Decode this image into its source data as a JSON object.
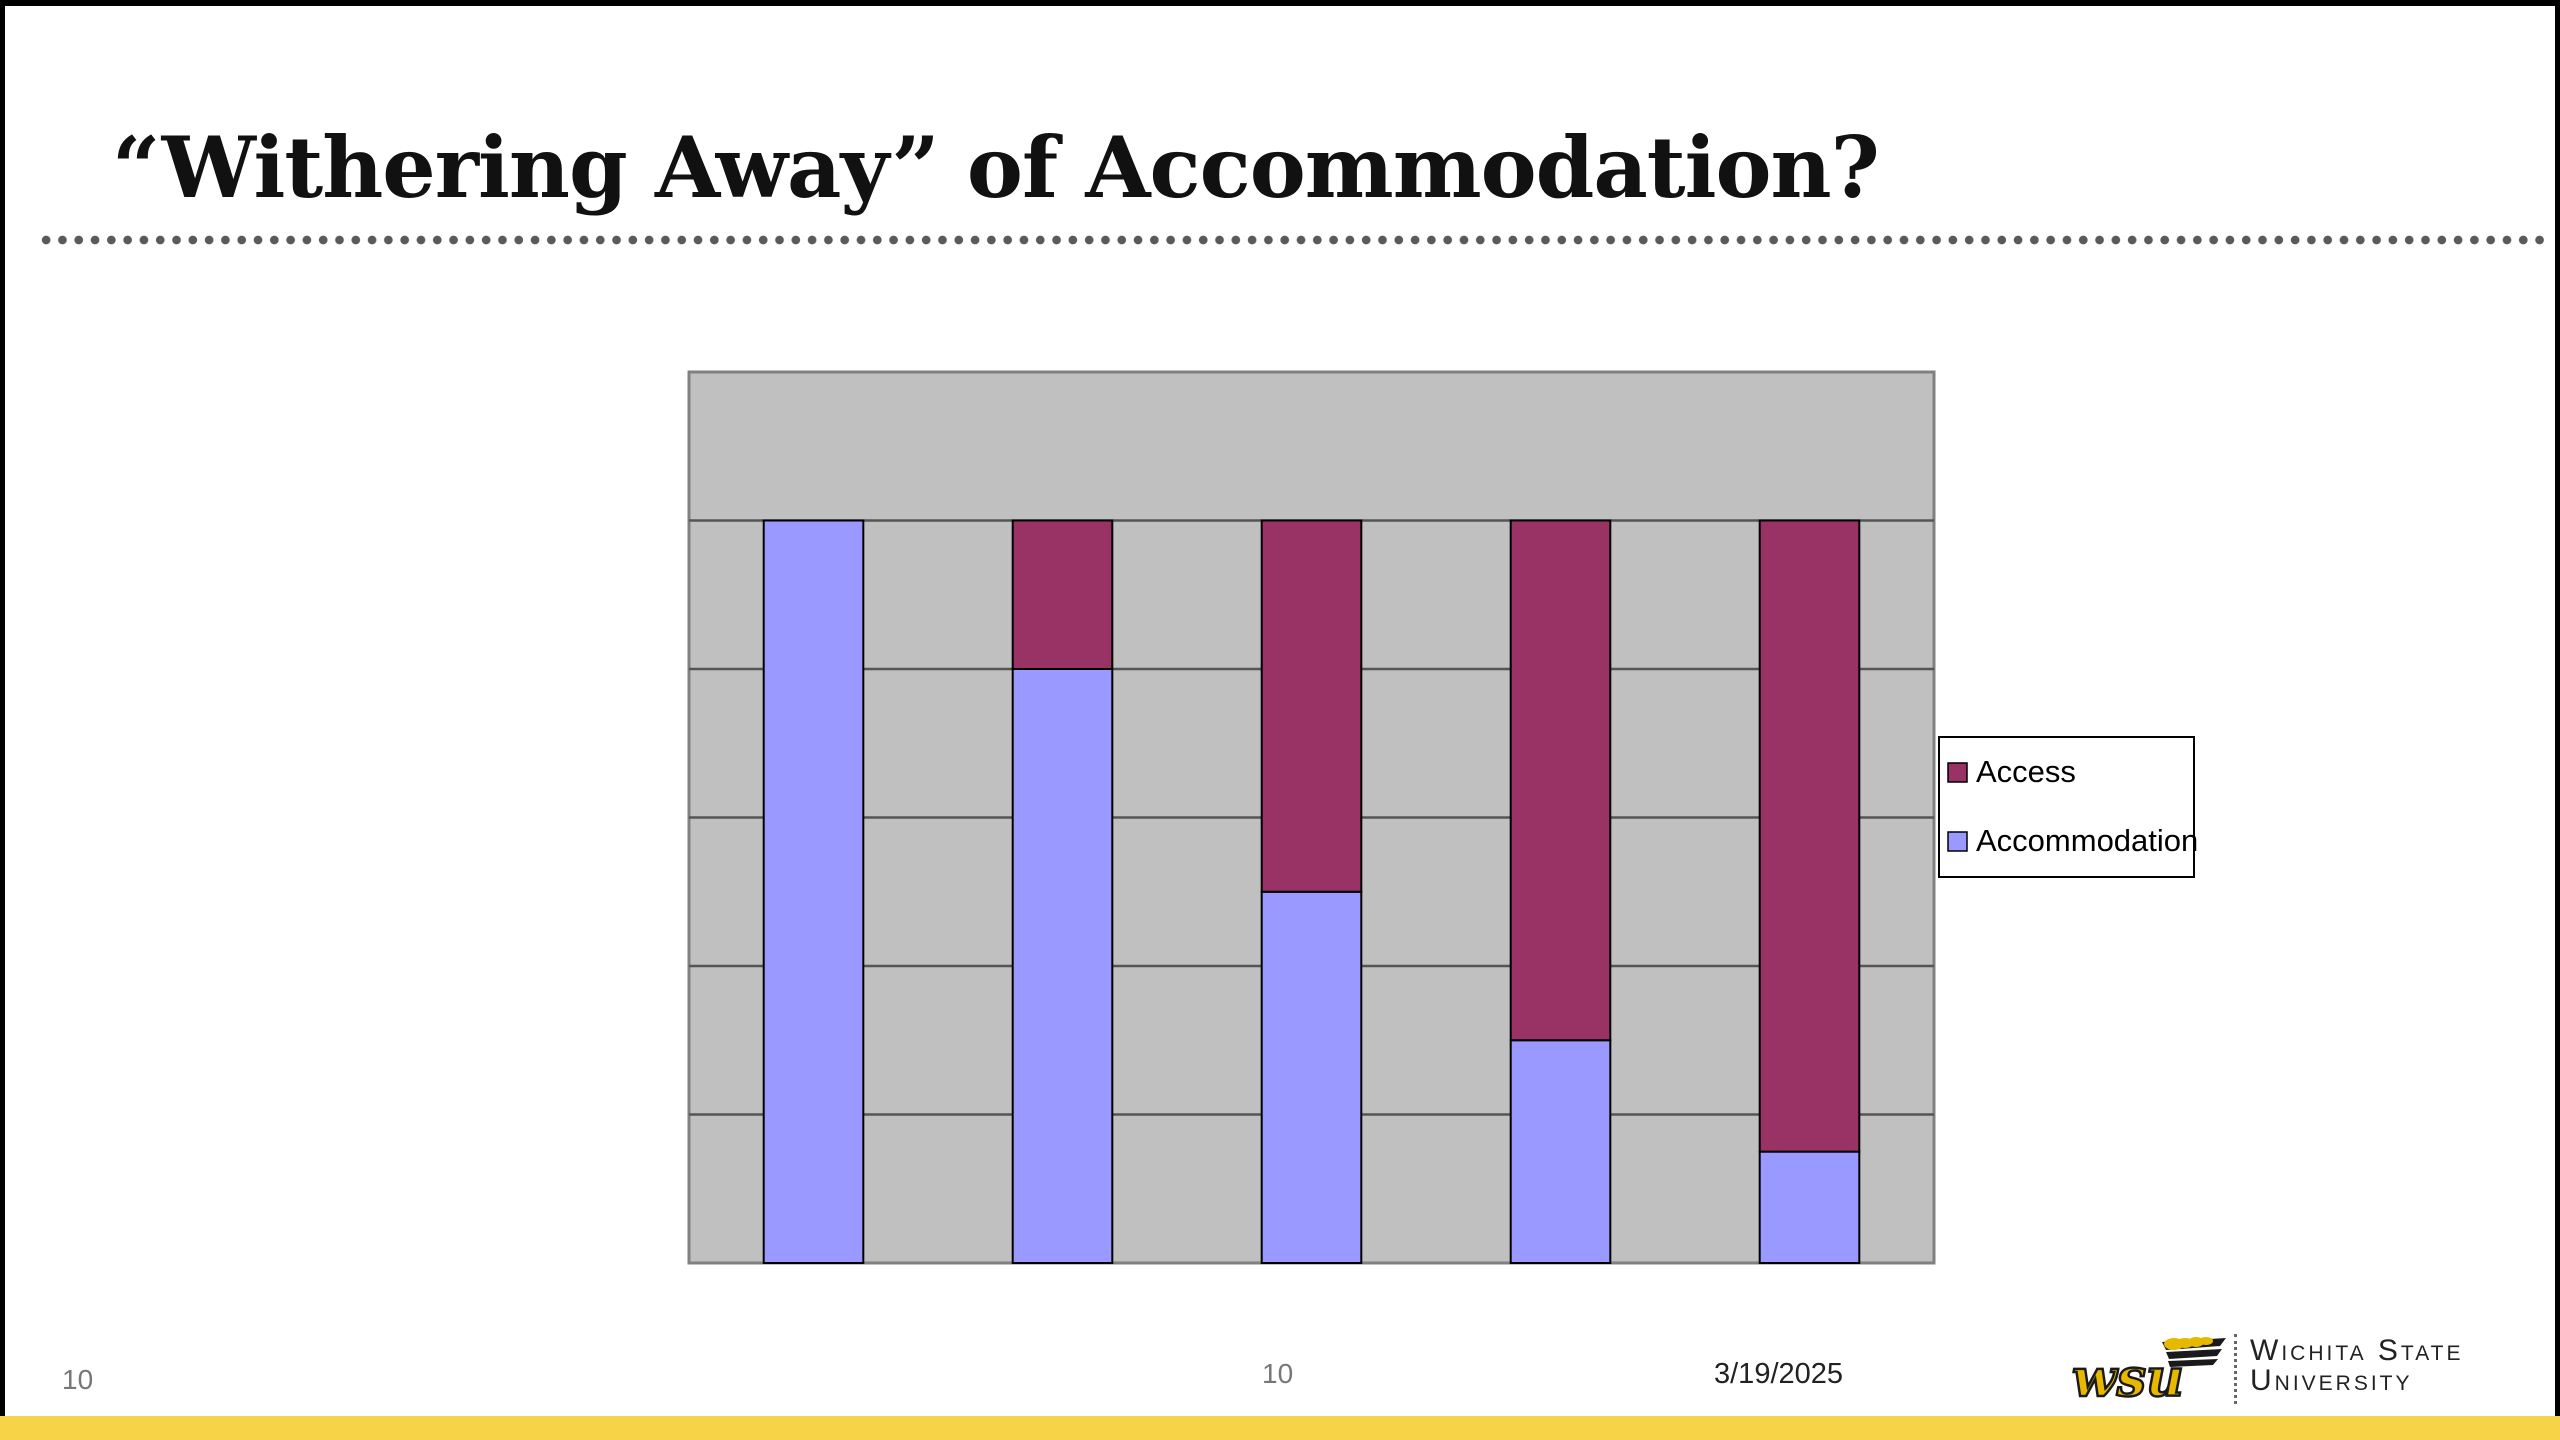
{
  "slide": {
    "title": "“Withering Away” of Accommodation?",
    "slide_number": "10",
    "center_number": "10",
    "date": "3/19/2025",
    "logo_text": {
      "mark": "wsu",
      "line1": "Wichita State",
      "line2": "University"
    },
    "colors": {
      "footer_bar": "#f5d547",
      "plot_background": "#c0c0c0"
    }
  },
  "chart_data": {
    "type": "bar",
    "stacked": true,
    "categories": [
      "",
      "",
      "",
      "",
      ""
    ],
    "series": [
      {
        "name": "Access",
        "color": "#993366",
        "values": [
          0,
          1,
          2.5,
          3.5,
          4.25
        ]
      },
      {
        "name": "Accommodation",
        "color": "#9999ff",
        "values": [
          5,
          4,
          2.5,
          1.5,
          0.75
        ]
      }
    ],
    "ylim": [
      0,
      6
    ],
    "gridlines": [
      1,
      2,
      3,
      4,
      5
    ],
    "grid": true,
    "legend": "right",
    "title": "",
    "xlabel": "",
    "ylabel": ""
  }
}
